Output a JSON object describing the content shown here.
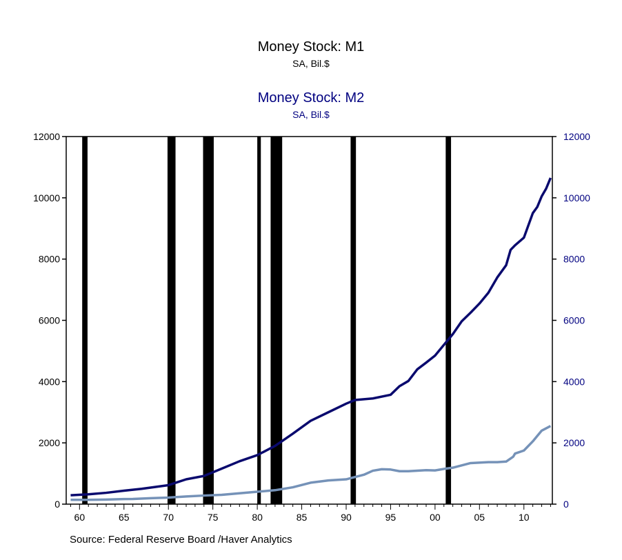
{
  "titles": {
    "m1_title": "Money Stock: M1",
    "m1_subtitle": "SA, Bil.$",
    "m2_title": "Money Stock: M2",
    "m2_subtitle": "SA, Bil.$"
  },
  "source": "Source:  Federal Reserve Board /Haver Analytics",
  "colors": {
    "m1": "#7592B8",
    "m2": "#0A0A6E",
    "m2_axis_text": "#000080",
    "recession": "#000000"
  },
  "chart_data": {
    "type": "line",
    "title": "Money Stock: M1 / Money Stock: M2",
    "xlim": [
      1958.5,
      2013.2
    ],
    "ylim_left": [
      0,
      12000
    ],
    "ylim_right": [
      0,
      12000
    ],
    "x_ticks": [
      1960,
      1965,
      1970,
      1975,
      1980,
      1985,
      1990,
      1995,
      2000,
      2005,
      2010
    ],
    "x_tick_labels": [
      "60",
      "65",
      "70",
      "75",
      "80",
      "85",
      "90",
      "95",
      "00",
      "05",
      "10"
    ],
    "y_ticks_left": [
      0,
      2000,
      4000,
      6000,
      8000,
      10000,
      12000
    ],
    "y_ticks_right": [
      0,
      2000,
      4000,
      6000,
      8000,
      10000,
      12000
    ],
    "grid": false,
    "recessions": [
      [
        1960.3,
        1960.9
      ],
      [
        1969.9,
        1970.8
      ],
      [
        1973.9,
        1975.1
      ],
      [
        1980.0,
        1980.4
      ],
      [
        1981.5,
        1982.8
      ],
      [
        1990.5,
        1991.1
      ],
      [
        2001.2,
        2001.8
      ]
    ],
    "series": [
      {
        "name": "Money Stock: M1",
        "axis": "left",
        "x": [
          1959,
          1961,
          1963,
          1965,
          1966,
          1968,
          1970,
          1972,
          1974,
          1976,
          1978,
          1980,
          1982,
          1984,
          1986,
          1988,
          1990,
          1992,
          1993,
          1994,
          1995,
          1996,
          1997,
          1999,
          2000,
          2001,
          2002,
          2004,
          2006,
          2007,
          2008,
          2008.8,
          2009,
          2010,
          2011,
          2012,
          2013
        ],
        "y": [
          140,
          142,
          150,
          165,
          170,
          195,
          215,
          250,
          280,
          305,
          355,
          405,
          455,
          550,
          700,
          775,
          810,
          960,
          1090,
          1140,
          1130,
          1075,
          1075,
          1110,
          1100,
          1150,
          1190,
          1340,
          1370,
          1370,
          1390,
          1550,
          1650,
          1750,
          2050,
          2400,
          2550
        ]
      },
      {
        "name": "Money Stock: M2",
        "axis": "right",
        "x": [
          1959,
          1961,
          1963,
          1965,
          1967,
          1969,
          1970,
          1972,
          1974,
          1976,
          1978,
          1980,
          1982,
          1984,
          1986,
          1988,
          1990,
          1991,
          1993,
          1995,
          1996,
          1997,
          1998,
          1999,
          2000,
          2001,
          2002,
          2003,
          2004,
          2005,
          2006,
          2007,
          2008,
          2008.5,
          2009,
          2010,
          2011,
          2011.5,
          2012,
          2012.5,
          2013
        ],
        "y": [
          290,
          320,
          370,
          440,
          500,
          580,
          620,
          810,
          920,
          1160,
          1400,
          1600,
          1900,
          2300,
          2720,
          3000,
          3280,
          3400,
          3450,
          3570,
          3850,
          4020,
          4400,
          4620,
          4850,
          5200,
          5550,
          5970,
          6250,
          6550,
          6900,
          7400,
          7800,
          8300,
          8450,
          8700,
          9500,
          9700,
          10050,
          10300,
          10650
        ]
      }
    ]
  }
}
